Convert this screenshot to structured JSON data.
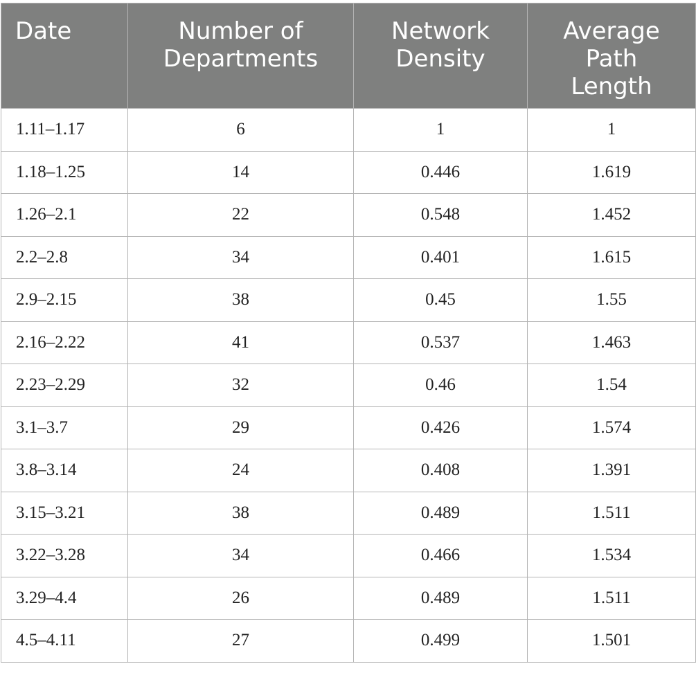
{
  "table": {
    "headers": [
      "Date",
      "Number of Departments",
      "Network Density",
      "Average Path Length"
    ],
    "rows": [
      [
        "1.11–1.17",
        "6",
        "1",
        "1"
      ],
      [
        "1.18–1.25",
        "14",
        "0.446",
        "1.619"
      ],
      [
        "1.26–2.1",
        "22",
        "0.548",
        "1.452"
      ],
      [
        "2.2–2.8",
        "34",
        "0.401",
        "1.615"
      ],
      [
        "2.9–2.15",
        "38",
        "0.45",
        "1.55"
      ],
      [
        "2.16–2.22",
        "41",
        "0.537",
        "1.463"
      ],
      [
        "2.23–2.29",
        "32",
        "0.46",
        "1.54"
      ],
      [
        "3.1–3.7",
        "29",
        "0.426",
        "1.574"
      ],
      [
        "3.8–3.14",
        "24",
        "0.408",
        "1.391"
      ],
      [
        "3.15–3.21",
        "38",
        "0.489",
        "1.511"
      ],
      [
        "3.22–3.28",
        "34",
        "0.466",
        "1.534"
      ],
      [
        "3.29–4.4",
        "26",
        "0.489",
        "1.511"
      ],
      [
        "4.5–4.11",
        "27",
        "0.499",
        "1.501"
      ]
    ]
  },
  "colors": {
    "header_background": "#7f807f",
    "header_text": "#ffffff",
    "grid_line": "#b4b4b4",
    "body_text": "#222222"
  }
}
